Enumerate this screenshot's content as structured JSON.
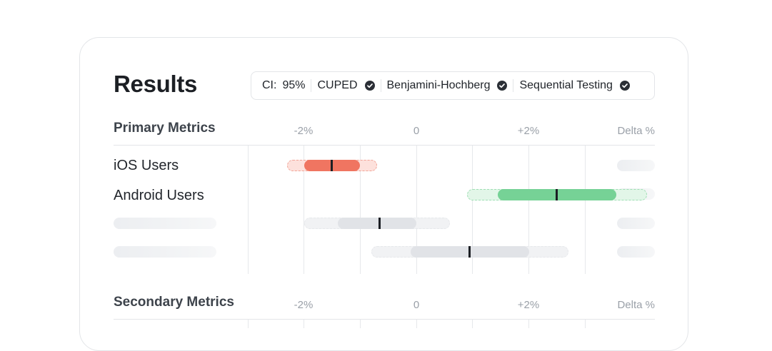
{
  "page": {
    "title": "Results"
  },
  "settings": {
    "ci_label": "CI:",
    "ci_value": "95%",
    "items": [
      "CUPED",
      "Benjamini-Hochberg",
      "Sequential Testing"
    ]
  },
  "primary": {
    "title": "Primary Metrics",
    "ticks": [
      "-2%",
      "0",
      "+2%"
    ],
    "delta_header": "Delta %",
    "rows": [
      {
        "label": "iOS Users",
        "ci_low": -2.3,
        "ci_high": -0.7,
        "core_low": -2.0,
        "core_high": -1.0,
        "point": -1.5,
        "status": "negative"
      },
      {
        "label": "Android Users",
        "ci_low": 0.9,
        "ci_high": 4.1,
        "core_low": 1.45,
        "core_high": 3.55,
        "point": 2.5,
        "status": "positive"
      },
      {
        "label": "",
        "ci_low": -2.0,
        "ci_high": 0.6,
        "core_low": -1.4,
        "core_high": 0.0,
        "point": -0.65,
        "status": "neutral"
      },
      {
        "label": "",
        "ci_low": -0.8,
        "ci_high": 2.7,
        "core_low": -0.1,
        "core_high": 2.0,
        "point": 0.95,
        "status": "neutral"
      }
    ]
  },
  "secondary": {
    "title": "Secondary Metrics",
    "ticks": [
      "-2%",
      "0",
      "+2%"
    ],
    "delta_header": "Delta %"
  },
  "colors": {
    "negative_fill": "#f07561",
    "negative_ci_bg": "#fde1dc",
    "negative_ci_border": "#f1a497",
    "positive_fill": "#76d296",
    "positive_ci_bg": "#e2f6e8",
    "positive_ci_border": "#9fdeb4",
    "neutral_fill": "#e1e3e7",
    "neutral_ci_bg": "#f1f2f4",
    "neutral_ci_border": "#e6e8eb"
  }
}
